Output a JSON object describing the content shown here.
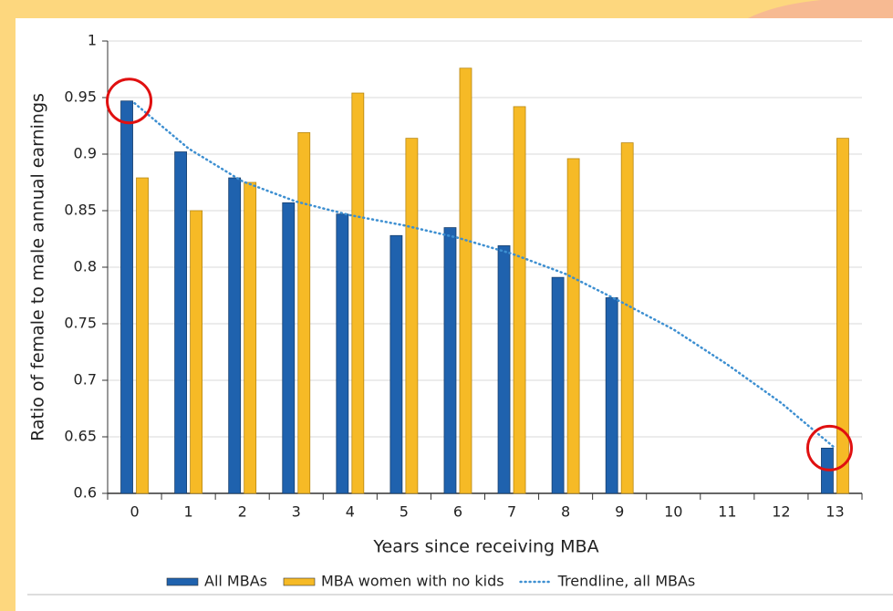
{
  "chart_data": {
    "type": "bar",
    "xlabel": "Years since receiving MBA",
    "ylabel": "Ratio of female to male annual earnings",
    "categories": [
      "0",
      "1",
      "2",
      "3",
      "4",
      "5",
      "6",
      "7",
      "8",
      "9",
      "10",
      "11",
      "12",
      "13"
    ],
    "series": [
      {
        "name": "All MBAs",
        "color": "#1f62ae",
        "values": [
          0.947,
          0.902,
          0.879,
          0.857,
          0.847,
          0.828,
          0.835,
          0.819,
          0.791,
          0.773,
          null,
          null,
          null,
          0.64
        ]
      },
      {
        "name": "MBA women with no kids",
        "color": "#f6ba26",
        "values": [
          0.879,
          0.85,
          0.875,
          0.919,
          0.954,
          0.914,
          0.976,
          0.942,
          0.896,
          0.91,
          null,
          null,
          null,
          0.914
        ]
      },
      {
        "name": "Trendline, all MBAs",
        "type": "line",
        "style": "dotted",
        "color": "#3d8fd1",
        "values": [
          0.945,
          0.905,
          0.876,
          0.858,
          0.846,
          0.837,
          0.826,
          0.812,
          0.794,
          0.77,
          0.745,
          0.714,
          0.68,
          0.64
        ]
      }
    ],
    "ylim": [
      0.6,
      1
    ],
    "yticks": [
      0.6,
      0.65,
      0.7,
      0.75,
      0.8,
      0.85,
      0.9,
      0.95,
      1
    ],
    "grid": true
  }
}
